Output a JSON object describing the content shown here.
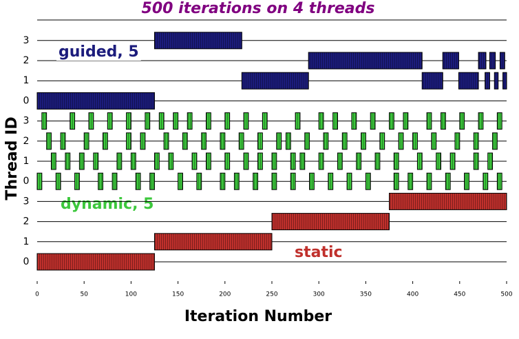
{
  "chart_data": {
    "type": "gantt",
    "title": "500 iterations on 4 threads",
    "xlabel": "Iteration Number",
    "ylabel": "Thread ID",
    "xlim": [
      0,
      500
    ],
    "xticks": [
      0,
      50,
      100,
      150,
      200,
      250,
      300,
      350,
      400,
      450,
      500
    ],
    "groups": [
      {
        "name": "guided, 5",
        "color": "#1c1c7c",
        "rows": [
          0,
          1,
          2,
          3
        ],
        "segments": [
          [
            [
              0,
              125
            ]
          ],
          [
            [
              218,
              289
            ],
            [
              410,
              432
            ],
            [
              449,
              470
            ],
            [
              477,
              482
            ],
            [
              487,
              491
            ],
            [
              496,
              500
            ]
          ],
          [
            [
              289,
              410
            ],
            [
              432,
              449
            ],
            [
              470,
              478
            ],
            [
              482,
              488
            ],
            [
              493,
              498
            ]
          ],
          [
            [
              125,
              218
            ]
          ]
        ]
      },
      {
        "name": "dynamic, 5",
        "color": "#3cc83c",
        "rows": [
          0,
          1,
          2,
          3
        ],
        "segments": [
          [
            [
              0,
              5
            ],
            [
              20,
              25
            ],
            [
              40,
              45
            ],
            [
              65,
              70
            ],
            [
              80,
              85
            ],
            [
              105,
              110
            ],
            [
              120,
              125
            ],
            [
              150,
              155
            ],
            [
              170,
              175
            ],
            [
              195,
              200
            ],
            [
              210,
              215
            ],
            [
              230,
              235
            ],
            [
              250,
              255
            ],
            [
              270,
              275
            ],
            [
              290,
              295
            ],
            [
              310,
              315
            ],
            [
              330,
              335
            ],
            [
              350,
              355
            ],
            [
              380,
              385
            ],
            [
              395,
              400
            ],
            [
              415,
              420
            ],
            [
              435,
              440
            ],
            [
              455,
              460
            ],
            [
              475,
              480
            ],
            [
              490,
              495
            ]
          ],
          [
            [
              15,
              20
            ],
            [
              30,
              35
            ],
            [
              45,
              50
            ],
            [
              60,
              65
            ],
            [
              85,
              90
            ],
            [
              100,
              105
            ],
            [
              125,
              130
            ],
            [
              140,
              145
            ],
            [
              165,
              170
            ],
            [
              180,
              185
            ],
            [
              200,
              205
            ],
            [
              220,
              225
            ],
            [
              235,
              240
            ],
            [
              250,
              255
            ],
            [
              270,
              275
            ],
            [
              280,
              285
            ],
            [
              300,
              305
            ],
            [
              320,
              325
            ],
            [
              340,
              345
            ],
            [
              360,
              365
            ],
            [
              380,
              385
            ],
            [
              405,
              410
            ],
            [
              425,
              430
            ],
            [
              440,
              445
            ],
            [
              465,
              470
            ],
            [
              480,
              485
            ]
          ],
          [
            [
              10,
              15
            ],
            [
              25,
              30
            ],
            [
              50,
              55
            ],
            [
              70,
              75
            ],
            [
              95,
              100
            ],
            [
              110,
              115
            ],
            [
              135,
              140
            ],
            [
              155,
              160
            ],
            [
              175,
              180
            ],
            [
              195,
              200
            ],
            [
              215,
              220
            ],
            [
              235,
              240
            ],
            [
              255,
              260
            ],
            [
              265,
              270
            ],
            [
              285,
              290
            ],
            [
              305,
              310
            ],
            [
              325,
              330
            ],
            [
              345,
              350
            ],
            [
              365,
              370
            ],
            [
              385,
              390
            ],
            [
              400,
              405
            ],
            [
              420,
              425
            ],
            [
              445,
              450
            ],
            [
              465,
              470
            ],
            [
              485,
              490
            ]
          ],
          [
            [
              5,
              10
            ],
            [
              35,
              40
            ],
            [
              55,
              60
            ],
            [
              75,
              80
            ],
            [
              95,
              100
            ],
            [
              115,
              120
            ],
            [
              130,
              135
            ],
            [
              145,
              150
            ],
            [
              160,
              165
            ],
            [
              180,
              185
            ],
            [
              200,
              205
            ],
            [
              220,
              225
            ],
            [
              240,
              245
            ],
            [
              275,
              280
            ],
            [
              300,
              305
            ],
            [
              315,
              320
            ],
            [
              335,
              340
            ],
            [
              355,
              360
            ],
            [
              375,
              380
            ],
            [
              390,
              395
            ],
            [
              415,
              420
            ],
            [
              430,
              435
            ],
            [
              450,
              455
            ],
            [
              470,
              475
            ],
            [
              490,
              495
            ]
          ]
        ]
      },
      {
        "name": "static",
        "color": "#c0302c",
        "rows": [
          0,
          1,
          2,
          3
        ],
        "segments": [
          [
            [
              0,
              125
            ]
          ],
          [
            [
              125,
              250
            ]
          ],
          [
            [
              250,
              375
            ]
          ],
          [
            [
              375,
              500
            ]
          ]
        ]
      }
    ]
  }
}
